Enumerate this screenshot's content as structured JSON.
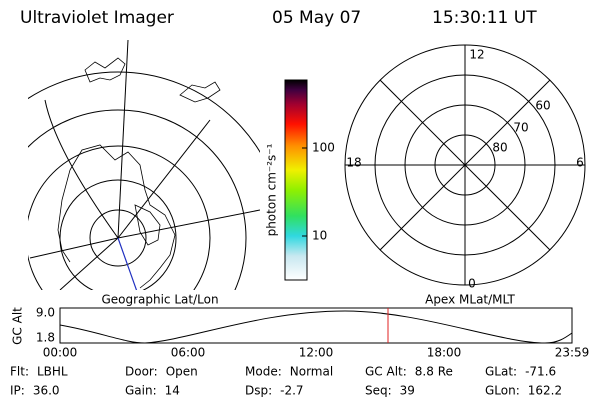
{
  "header": {
    "title": "Ultraviolet Imager",
    "date": "05 May 07",
    "time": "15:30:11 UT"
  },
  "colorbar": {
    "unit_label": "photon cm⁻²s⁻¹",
    "ticks": [
      "100",
      "10"
    ]
  },
  "geo_panel": {
    "label": "Geographic Lat/Lon"
  },
  "polar_panel": {
    "label": "Apex MLat/MLT",
    "lat_labels": [
      "60",
      "70",
      "80"
    ],
    "mlt_labels": [
      "12",
      "18",
      "6",
      "0"
    ]
  },
  "altitude_plot": {
    "ylabel": "GC Alt",
    "yticks": [
      "9.0",
      "1.8"
    ],
    "xticks": [
      "00:00",
      "06:00",
      "12:00",
      "18:00",
      "23:59"
    ]
  },
  "info": [
    [
      {
        "label": "Flt:",
        "value": "LBHL"
      },
      {
        "label": "Door:",
        "value": "Open"
      },
      {
        "label": "Mode:",
        "value": "Normal"
      },
      {
        "label": "GC Alt:",
        "value": "8.8 Re"
      },
      {
        "label": "GLat:",
        "value": "-71.6"
      }
    ],
    [
      {
        "label": "IP:",
        "value": "36.0"
      },
      {
        "label": "Gain:",
        "value": "14"
      },
      {
        "label": "Dsp:",
        "value": "-2.7"
      },
      {
        "label": "Seq:",
        "value": "39"
      },
      {
        "label": "GLon:",
        "value": "162.2"
      }
    ]
  ]
}
